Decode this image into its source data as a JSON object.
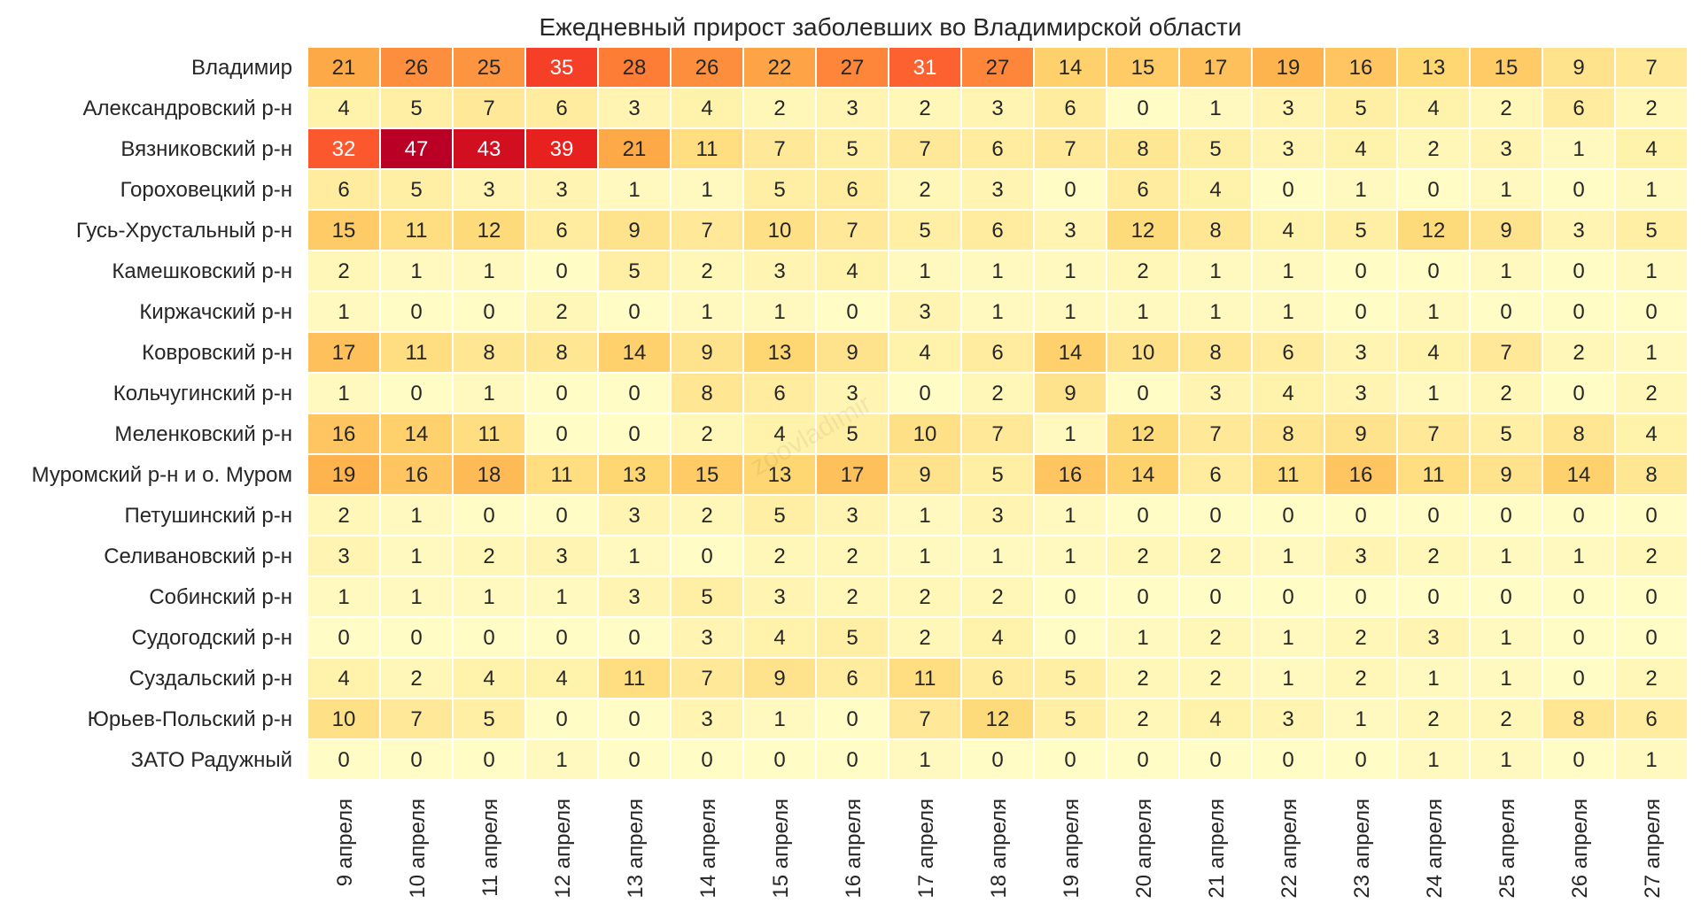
{
  "chart_data": {
    "type": "heatmap",
    "title": "Ежедневный прирост заболевших во Владимирской области",
    "watermark": "zoovladimir",
    "xlabel": "",
    "ylabel": "",
    "vmin": 0,
    "vmax": 47,
    "colormap": "YlOrRd",
    "columns": [
      "9 апреля",
      "10 апреля",
      "11 апреля",
      "12 апреля",
      "13 апреля",
      "14 апреля",
      "15 апреля",
      "16 апреля",
      "17 апреля",
      "18 апреля",
      "19 апреля",
      "20 апреля",
      "21 апреля",
      "22 апреля",
      "23 апреля",
      "24 апреля",
      "25 апреля",
      "26 апреля",
      "27 апреля"
    ],
    "rows": [
      "Владимир",
      "Александровский р-н",
      "Вязниковский р-н",
      "Гороховецкий р-н",
      "Гусь-Хрустальный р-н",
      "Камешковский р-н",
      "Киржачский р-н",
      "Ковровский р-н",
      "Кольчугинский р-н",
      "Меленковский р-н",
      "Муромский р-н и о. Муром",
      "Петушинский р-н",
      "Селивановский р-н",
      "Собинский р-н",
      "Судогодский р-н",
      "Суздальский р-н",
      "Юрьев-Польский р-н",
      "ЗАТО Радужный"
    ],
    "values": [
      [
        21,
        26,
        25,
        35,
        28,
        26,
        22,
        27,
        31,
        27,
        14,
        15,
        17,
        19,
        16,
        13,
        15,
        9,
        7
      ],
      [
        4,
        5,
        7,
        6,
        3,
        4,
        2,
        3,
        2,
        3,
        6,
        0,
        1,
        3,
        5,
        4,
        2,
        6,
        2
      ],
      [
        32,
        47,
        43,
        39,
        21,
        11,
        7,
        5,
        7,
        6,
        7,
        8,
        5,
        3,
        4,
        2,
        3,
        1,
        4
      ],
      [
        6,
        5,
        3,
        3,
        1,
        1,
        5,
        6,
        2,
        3,
        0,
        6,
        4,
        0,
        1,
        0,
        1,
        0,
        1
      ],
      [
        15,
        11,
        12,
        6,
        9,
        7,
        10,
        7,
        5,
        6,
        3,
        12,
        8,
        4,
        5,
        12,
        9,
        3,
        5
      ],
      [
        2,
        1,
        1,
        0,
        5,
        2,
        3,
        4,
        1,
        1,
        1,
        2,
        1,
        1,
        0,
        0,
        1,
        0,
        1
      ],
      [
        1,
        0,
        0,
        2,
        0,
        1,
        1,
        0,
        3,
        1,
        1,
        1,
        1,
        1,
        0,
        1,
        0,
        0,
        0
      ],
      [
        17,
        11,
        8,
        8,
        14,
        9,
        13,
        9,
        4,
        6,
        14,
        10,
        8,
        6,
        3,
        4,
        7,
        2,
        1
      ],
      [
        1,
        0,
        1,
        0,
        0,
        8,
        6,
        3,
        0,
        2,
        9,
        0,
        3,
        4,
        3,
        1,
        2,
        0,
        2
      ],
      [
        16,
        14,
        11,
        0,
        0,
        2,
        4,
        5,
        10,
        7,
        1,
        12,
        7,
        8,
        9,
        7,
        5,
        8,
        4
      ],
      [
        19,
        16,
        18,
        11,
        13,
        15,
        13,
        17,
        9,
        5,
        16,
        14,
        6,
        11,
        16,
        11,
        9,
        14,
        8
      ],
      [
        2,
        1,
        0,
        0,
        3,
        2,
        5,
        3,
        1,
        3,
        1,
        0,
        0,
        0,
        0,
        0,
        0,
        0,
        0
      ],
      [
        3,
        1,
        2,
        3,
        1,
        0,
        2,
        2,
        1,
        1,
        1,
        2,
        2,
        1,
        3,
        2,
        1,
        1,
        2
      ],
      [
        1,
        1,
        1,
        1,
        3,
        5,
        3,
        2,
        2,
        2,
        0,
        0,
        0,
        0,
        0,
        0,
        0,
        0,
        0
      ],
      [
        0,
        0,
        0,
        0,
        0,
        3,
        4,
        5,
        2,
        4,
        0,
        1,
        2,
        1,
        2,
        3,
        1,
        0,
        0
      ],
      [
        4,
        2,
        4,
        4,
        11,
        7,
        9,
        6,
        11,
        6,
        5,
        2,
        2,
        1,
        2,
        1,
        1,
        0,
        2
      ],
      [
        10,
        7,
        5,
        0,
        0,
        3,
        1,
        0,
        7,
        12,
        5,
        2,
        4,
        3,
        1,
        2,
        2,
        8,
        6
      ],
      [
        0,
        0,
        0,
        1,
        0,
        0,
        0,
        0,
        1,
        0,
        0,
        0,
        0,
        0,
        0,
        1,
        1,
        0,
        1
      ]
    ]
  }
}
